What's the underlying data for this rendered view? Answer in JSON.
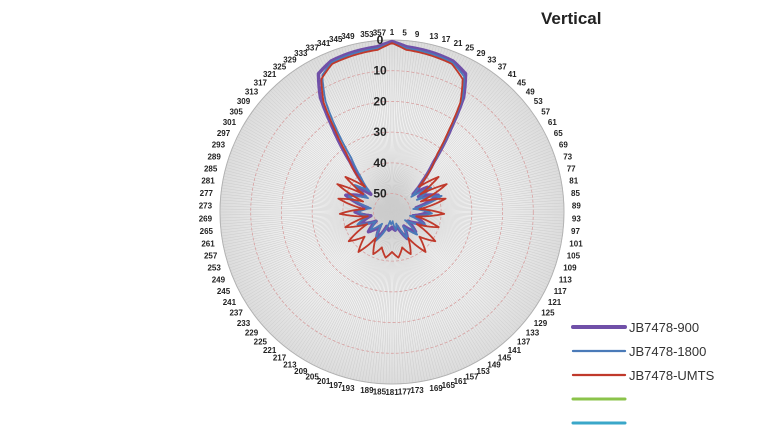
{
  "chart_data": {
    "type": "radar",
    "title": "Vertical",
    "angle_ticks": [
      1,
      5,
      9,
      13,
      17,
      21,
      25,
      29,
      33,
      37,
      41,
      45,
      49,
      53,
      57,
      61,
      65,
      69,
      73,
      77,
      81,
      85,
      89,
      93,
      97,
      101,
      105,
      109,
      113,
      117,
      121,
      125,
      129,
      133,
      137,
      141,
      145,
      149,
      153,
      157,
      161,
      165,
      169,
      173,
      177,
      181,
      185,
      189,
      193,
      197,
      201,
      205,
      209,
      213,
      217,
      221,
      225,
      229,
      233,
      237,
      241,
      245,
      249,
      253,
      257,
      261,
      265,
      269,
      273,
      277,
      281,
      285,
      289,
      293,
      297,
      301,
      305,
      309,
      313,
      317,
      321,
      325,
      329,
      333,
      337,
      341,
      345,
      349,
      353,
      357
    ],
    "radial_ticks": [
      0,
      10,
      20,
      30,
      40,
      50
    ],
    "radial_range": [
      0,
      56
    ],
    "radial_direction": "reversed (0 at outer edge, 50 near centre)",
    "grid": true,
    "legend_position": "bottom-right",
    "series": [
      {
        "name": "JB7478-900",
        "color": "#7050a8",
        "width": 3.5,
        "profile": [
          [
            0,
            0.5
          ],
          [
            5,
            2
          ],
          [
            15,
            2.5
          ],
          [
            22,
            3
          ],
          [
            28,
            5
          ],
          [
            32,
            12
          ],
          [
            35,
            22
          ],
          [
            38,
            30
          ],
          [
            40,
            35
          ],
          [
            45,
            42
          ],
          [
            50,
            47
          ],
          [
            55,
            42
          ],
          [
            60,
            46
          ],
          [
            70,
            40
          ],
          [
            80,
            48
          ],
          [
            90,
            44
          ],
          [
            100,
            49
          ],
          [
            110,
            45
          ],
          [
            120,
            50
          ],
          [
            130,
            46
          ],
          [
            140,
            50
          ],
          [
            150,
            46
          ],
          [
            160,
            51
          ],
          [
            170,
            50
          ],
          [
            180,
            51
          ],
          [
            190,
            50
          ],
          [
            200,
            51
          ],
          [
            210,
            46
          ],
          [
            220,
            50
          ],
          [
            230,
            46
          ],
          [
            240,
            50
          ],
          [
            250,
            45
          ],
          [
            260,
            49
          ],
          [
            270,
            44
          ],
          [
            280,
            48
          ],
          [
            290,
            40
          ],
          [
            300,
            46
          ],
          [
            305,
            42
          ],
          [
            310,
            47
          ],
          [
            315,
            42
          ],
          [
            320,
            35
          ],
          [
            322,
            30
          ],
          [
            325,
            22
          ],
          [
            328,
            12
          ],
          [
            332,
            5
          ],
          [
            338,
            3
          ],
          [
            345,
            2.5
          ],
          [
            355,
            2
          ],
          [
            360,
            0.5
          ]
        ]
      },
      {
        "name": "JB7478-1800",
        "color": "#4a7ab8",
        "width": 1.8,
        "profile": [
          [
            0,
            1
          ],
          [
            5,
            2.5
          ],
          [
            15,
            3
          ],
          [
            22,
            3.5
          ],
          [
            28,
            6
          ],
          [
            32,
            13
          ],
          [
            35,
            23
          ],
          [
            38,
            31
          ],
          [
            41,
            36
          ],
          [
            46,
            43
          ],
          [
            52,
            48
          ],
          [
            58,
            41
          ],
          [
            64,
            47
          ],
          [
            72,
            39
          ],
          [
            82,
            49
          ],
          [
            92,
            43
          ],
          [
            102,
            50
          ],
          [
            112,
            44
          ],
          [
            122,
            51
          ],
          [
            132,
            45
          ],
          [
            142,
            50
          ],
          [
            150,
            46
          ],
          [
            160,
            52
          ],
          [
            168,
            50
          ],
          [
            176,
            53
          ],
          [
            184,
            52
          ],
          [
            192,
            53
          ],
          [
            200,
            50
          ],
          [
            210,
            45
          ],
          [
            220,
            51
          ],
          [
            230,
            47
          ],
          [
            240,
            50
          ],
          [
            250,
            44
          ],
          [
            260,
            48
          ],
          [
            270,
            45
          ],
          [
            280,
            49
          ],
          [
            290,
            41
          ],
          [
            300,
            47
          ],
          [
            306,
            41
          ],
          [
            312,
            46
          ],
          [
            318,
            41
          ],
          [
            323,
            34
          ],
          [
            326,
            24
          ],
          [
            329,
            14
          ],
          [
            333,
            6
          ],
          [
            338,
            3.5
          ],
          [
            345,
            3
          ],
          [
            355,
            2.5
          ],
          [
            360,
            1
          ]
        ]
      },
      {
        "name": "JB7478-UMTS",
        "color": "#c0392b",
        "width": 1.8,
        "profile": [
          [
            0,
            1
          ],
          [
            5,
            3
          ],
          [
            14,
            3.5
          ],
          [
            22,
            4
          ],
          [
            28,
            7
          ],
          [
            32,
            14
          ],
          [
            35,
            24
          ],
          [
            38,
            32
          ],
          [
            42,
            37
          ],
          [
            47,
            44
          ],
          [
            53,
            37
          ],
          [
            58,
            45
          ],
          [
            63,
            36
          ],
          [
            70,
            46
          ],
          [
            76,
            38
          ],
          [
            84,
            47
          ],
          [
            92,
            39
          ],
          [
            100,
            48
          ],
          [
            108,
            40
          ],
          [
            116,
            47
          ],
          [
            124,
            39
          ],
          [
            132,
            44
          ],
          [
            140,
            39
          ],
          [
            148,
            46
          ],
          [
            156,
            41
          ],
          [
            164,
            44
          ],
          [
            172,
            41
          ],
          [
            180,
            43
          ],
          [
            188,
            41
          ],
          [
            196,
            44
          ],
          [
            204,
            41
          ],
          [
            212,
            46
          ],
          [
            220,
            39
          ],
          [
            228,
            44
          ],
          [
            236,
            39
          ],
          [
            244,
            47
          ],
          [
            252,
            40
          ],
          [
            260,
            48
          ],
          [
            268,
            39
          ],
          [
            276,
            47
          ],
          [
            284,
            38
          ],
          [
            290,
            46
          ],
          [
            297,
            36
          ],
          [
            302,
            45
          ],
          [
            307,
            37
          ],
          [
            313,
            44
          ],
          [
            318,
            37
          ],
          [
            322,
            32
          ],
          [
            325,
            24
          ],
          [
            328,
            14
          ],
          [
            332,
            7
          ],
          [
            338,
            4
          ],
          [
            346,
            3.5
          ],
          [
            355,
            3
          ],
          [
            360,
            1
          ]
        ]
      },
      {
        "color": "#8bc34a",
        "width": 2.5,
        "profile": []
      },
      {
        "color": "#3aa7c9",
        "width": 2.5,
        "profile": []
      }
    ]
  }
}
